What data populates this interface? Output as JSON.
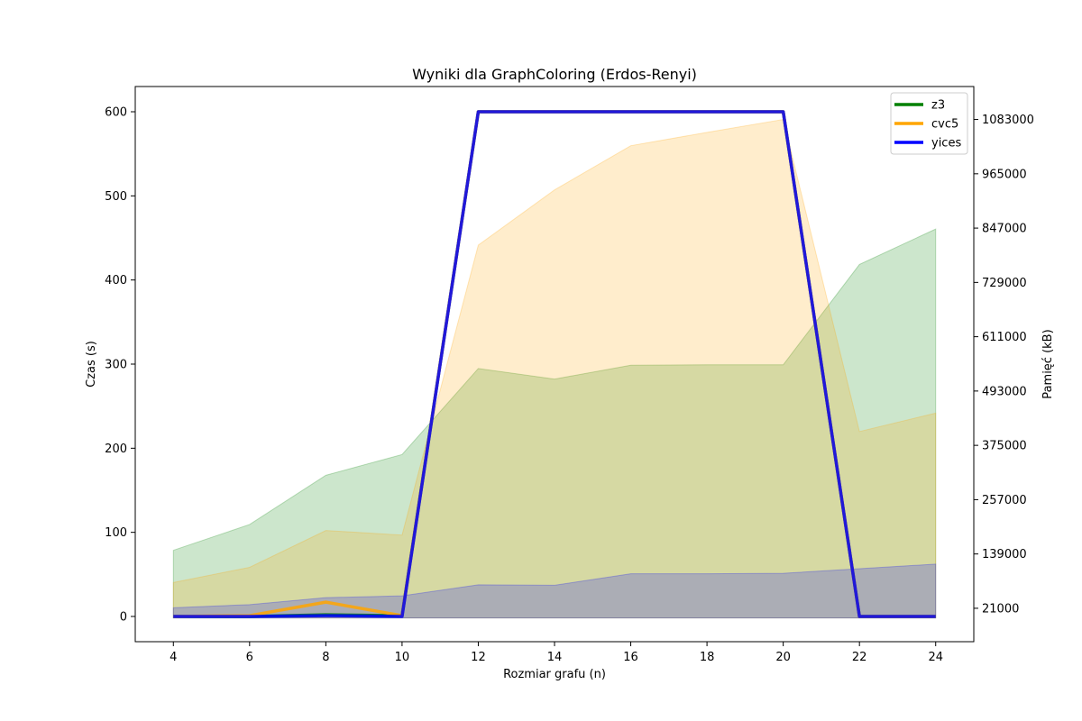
{
  "chart_data": {
    "type": "line",
    "title": "Wyniki dla GraphColoring (Erdos-Renyi)",
    "xlabel": "Rozmiar grafu (n)",
    "ylabel": "Czas (s)",
    "y2label": "Pamięć (kB)",
    "x": [
      4,
      6,
      8,
      10,
      12,
      14,
      16,
      18,
      20,
      22,
      24
    ],
    "xticks": [
      "4",
      "6",
      "8",
      "10",
      "12",
      "14",
      "16",
      "18",
      "20",
      "22",
      "24"
    ],
    "xlim": [
      3,
      25
    ],
    "ylim": [
      -30,
      630
    ],
    "yticks": [
      "0",
      "100",
      "200",
      "300",
      "400",
      "500",
      "600"
    ],
    "y2lim": [
      -51600,
      1154600
    ],
    "y2ticks": [
      "21000",
      "139000",
      "257000",
      "375000",
      "493000",
      "611000",
      "729000",
      "847000",
      "965000",
      "1083000"
    ],
    "legend_position": "top-right",
    "series": [
      {
        "name": "z3",
        "color": "#008000",
        "time": [
          0,
          0,
          2,
          1,
          600,
          600,
          600,
          600,
          600,
          0,
          0
        ],
        "memory": [
          147000,
          203000,
          310000,
          355000,
          542000,
          519000,
          549000,
          550000,
          550000,
          768000,
          845000
        ]
      },
      {
        "name": "cvc5",
        "color": "#FFA500",
        "time": [
          0,
          1,
          17,
          1,
          600,
          600,
          600,
          600,
          600,
          0,
          0
        ],
        "memory": [
          77000,
          110000,
          190000,
          180000,
          810000,
          930000,
          1026000,
          1055000,
          1083000,
          405000,
          445000
        ]
      },
      {
        "name": "yices",
        "color": "#0000FF",
        "time": [
          0,
          0,
          1,
          0,
          600,
          600,
          600,
          600,
          600,
          0,
          0
        ],
        "memory": [
          22000,
          29000,
          44000,
          48000,
          72000,
          71000,
          96000,
          96000,
          97000,
          107000,
          117000
        ]
      }
    ]
  }
}
